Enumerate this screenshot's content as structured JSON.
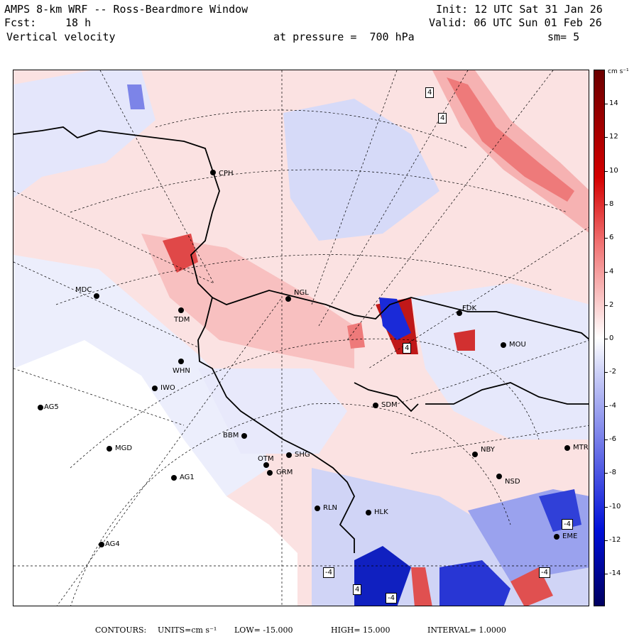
{
  "header": {
    "title": "AMPS 8-km WRF -- Ross-Beardmore Window",
    "fcst_label": "Fcst:",
    "fcst_value": "18 h",
    "field": "Vertical velocity",
    "init": "Init: 12 UTC Sat 31 Jan 26",
    "valid": "Valid: 06 UTC Sun 01 Feb 26",
    "pressure": "at pressure =  700 hPa",
    "smoothing": "sm= 5"
  },
  "colorbar": {
    "units": "cm s⁻¹",
    "ticks": [
      "14",
      "12",
      "10",
      "8",
      "6",
      "4",
      "2",
      "0",
      "-2",
      "-4",
      "-6",
      "-8",
      "-10",
      "-12",
      "-14"
    ],
    "colors": {
      "max": "#6b0000",
      "strong_pos": "#d40000",
      "mid_pos": "#f07070",
      "weak_pos": "#fbd0d0",
      "zero": "#ffffff",
      "weak_neg": "#d0d4f8",
      "mid_neg": "#7078e8",
      "strong_neg": "#0010d8",
      "min": "#000060"
    }
  },
  "stations": [
    {
      "id": "CPH"
    },
    {
      "id": "MDC"
    },
    {
      "id": "TDM"
    },
    {
      "id": "WHN"
    },
    {
      "id": "IWO"
    },
    {
      "id": "AG5"
    },
    {
      "id": "NGL"
    },
    {
      "id": "BBM"
    },
    {
      "id": "MGD"
    },
    {
      "id": "AG1"
    },
    {
      "id": "OTM"
    },
    {
      "id": "SHG"
    },
    {
      "id": "GRM"
    },
    {
      "id": "AG4"
    },
    {
      "id": "RLN"
    },
    {
      "id": "HLK"
    },
    {
      "id": "SDM"
    },
    {
      "id": "NBY"
    },
    {
      "id": "NSD"
    },
    {
      "id": "MTR"
    },
    {
      "id": "EME"
    },
    {
      "id": "FDK"
    },
    {
      "id": "MOU"
    }
  ],
  "contour_labels": [
    "4",
    "4",
    "4",
    "-4",
    "-4",
    "-4",
    "4",
    "-4"
  ],
  "footer": {
    "contours_label": "CONTOURS:",
    "units": "UNITS=cm s⁻¹",
    "low": "LOW= -15.000",
    "high": "HIGH= 15.000",
    "interval": "INTERVAL= 1.0000"
  }
}
